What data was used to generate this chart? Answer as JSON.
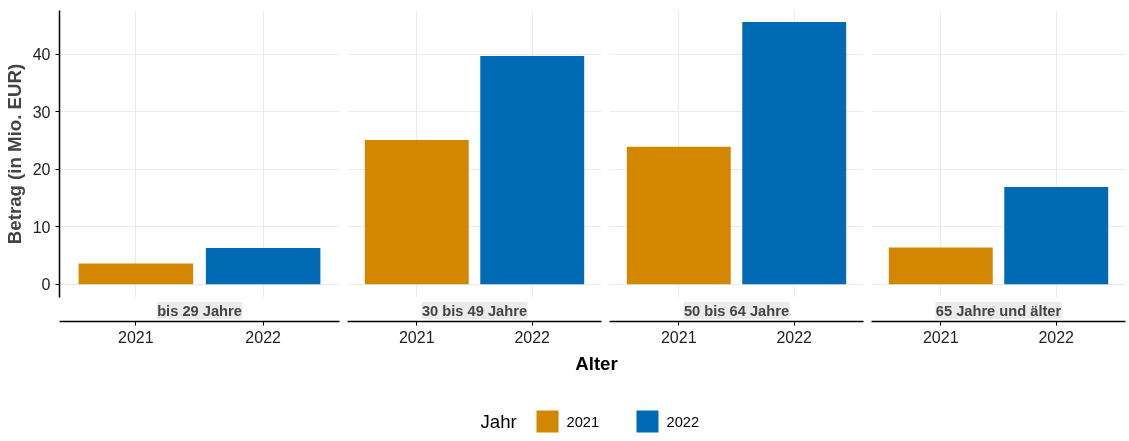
{
  "chart_data": [
    {
      "type": "bar",
      "title": "bis 29 Jahre",
      "ylabel": "Betrag (in Mio. EUR)",
      "legend_title": "Jahr",
      "legend": "bottom",
      "categories": [
        "2021",
        "2022"
      ],
      "ylim": [
        -2.3,
        47.6
      ],
      "yticks": [
        0,
        10,
        20,
        30,
        40
      ],
      "grid": true,
      "series": [
        {
          "name": "2021",
          "color": "#d38600",
          "values": [
            3.6,
            null
          ]
        },
        {
          "name": "2022",
          "color": "#006ab4",
          "values": [
            null,
            6.3
          ]
        }
      ]
    },
    {
      "type": "bar",
      "title": "30 bis 49 Jahre",
      "xlabel": "Alter",
      "categories": [
        "2021",
        "2022"
      ],
      "ylim": [
        -2.3,
        47.6
      ],
      "yticks": [
        0,
        10,
        20,
        30,
        40
      ],
      "grid": true,
      "tick_labels": "x",
      "series": [
        {
          "color": "#d38600",
          "values": [
            25.1,
            null
          ]
        },
        {
          "color": "#006ab4",
          "values": [
            null,
            39.7
          ]
        }
      ]
    },
    {
      "type": "bar",
      "title": "50 bis 64 Jahre",
      "categories": [
        "2021",
        "2022"
      ],
      "ylim": [
        -2.3,
        47.6
      ],
      "yticks": [
        0,
        10,
        20,
        30,
        40
      ],
      "grid": true,
      "tick_labels": "x",
      "series": [
        {
          "color": "#d38600",
          "values": [
            23.9,
            null
          ]
        },
        {
          "color": "#006ab4",
          "values": [
            null,
            45.6
          ]
        }
      ]
    },
    {
      "type": "bar",
      "title": "65 Jahre und älter",
      "categories": [
        "2021",
        "2022"
      ],
      "ylim": [
        -2.3,
        47.6
      ],
      "yticks": [
        0,
        10,
        20,
        30,
        40
      ],
      "grid": true,
      "tick_labels": "x",
      "series": [
        {
          "color": "#d38600",
          "values": [
            6.4,
            null
          ]
        },
        {
          "color": "#006ab4",
          "values": [
            null,
            16.9
          ]
        }
      ]
    }
  ]
}
